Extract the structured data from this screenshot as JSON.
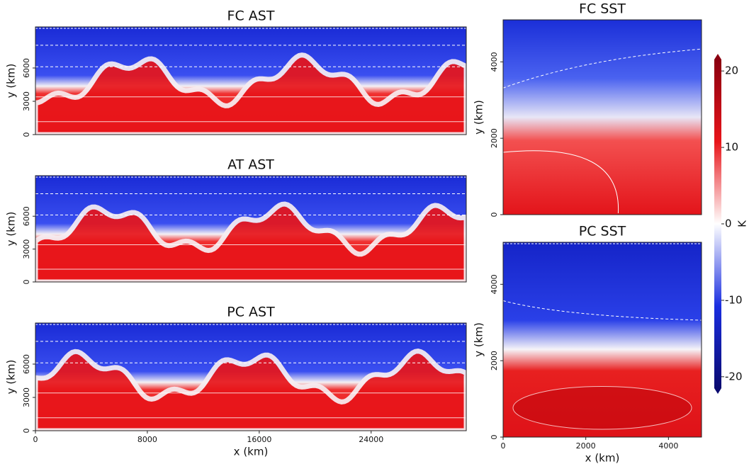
{
  "chart_data": [
    {
      "type": "heatmap",
      "title": "FC AST",
      "ylabel": "y (km)",
      "xlim": [
        0,
        30800
      ],
      "ylim": [
        0,
        9700
      ],
      "yticks": [
        0,
        3000,
        6000
      ]
    },
    {
      "type": "heatmap",
      "title": "AT AST",
      "ylabel": "y (km)",
      "xlim": [
        0,
        30800
      ],
      "ylim": [
        0,
        9700
      ],
      "yticks": [
        0,
        3000,
        6000
      ]
    },
    {
      "type": "heatmap",
      "title": "PC AST",
      "ylabel": "y (km)",
      "xlabel": "x (km)",
      "xlim": [
        0,
        30800
      ],
      "ylim": [
        0,
        9700
      ],
      "xticks": [
        0,
        8000,
        16000,
        24000
      ],
      "yticks": [
        0,
        3000,
        6000
      ]
    },
    {
      "type": "heatmap",
      "title": "FC SST",
      "ylabel": "y (km)",
      "xlim": [
        0,
        4800
      ],
      "ylim": [
        0,
        5100
      ],
      "yticks": [
        0,
        2000,
        4000
      ]
    },
    {
      "type": "heatmap",
      "title": "PC SST",
      "ylabel": "y (km)",
      "xlabel": "x (km)",
      "xlim": [
        0,
        4800
      ],
      "ylim": [
        0,
        5100
      ],
      "xticks": [
        0,
        2000,
        4000
      ],
      "yticks": [
        0,
        2000,
        4000
      ]
    },
    {
      "type": "colorbar",
      "label": "K",
      "ylim": [
        -21.5,
        21.5
      ],
      "yticks": [
        -20,
        -10,
        0,
        10,
        20
      ]
    }
  ]
}
